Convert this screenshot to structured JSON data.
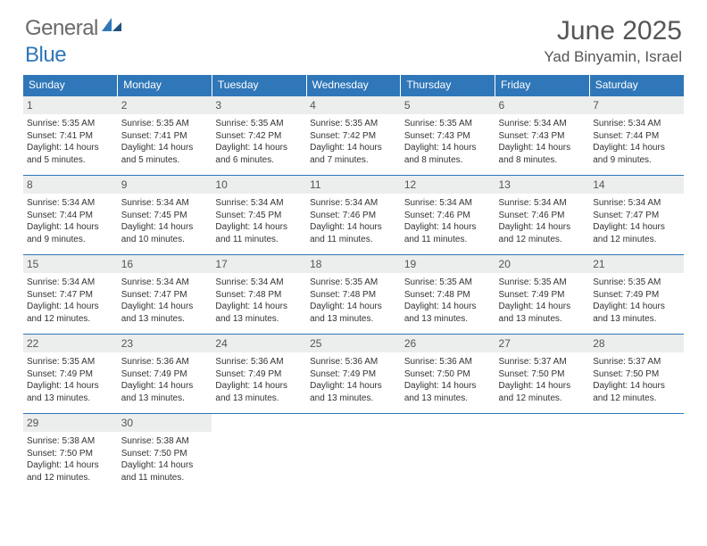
{
  "logo": {
    "word1": "General",
    "word2": "Blue"
  },
  "title": "June 2025",
  "location": "Yad Binyamin, Israel",
  "colors": {
    "header_bg": "#2f77b8",
    "header_text": "#ffffff",
    "daynum_bg": "#eceded",
    "border": "#2f77b8",
    "title_color": "#555555",
    "body_text": "#333333"
  },
  "weekdays": [
    "Sunday",
    "Monday",
    "Tuesday",
    "Wednesday",
    "Thursday",
    "Friday",
    "Saturday"
  ],
  "days": {
    "1": {
      "sunrise": "5:35 AM",
      "sunset": "7:41 PM",
      "daylight": "14 hours and 5 minutes."
    },
    "2": {
      "sunrise": "5:35 AM",
      "sunset": "7:41 PM",
      "daylight": "14 hours and 5 minutes."
    },
    "3": {
      "sunrise": "5:35 AM",
      "sunset": "7:42 PM",
      "daylight": "14 hours and 6 minutes."
    },
    "4": {
      "sunrise": "5:35 AM",
      "sunset": "7:42 PM",
      "daylight": "14 hours and 7 minutes."
    },
    "5": {
      "sunrise": "5:35 AM",
      "sunset": "7:43 PM",
      "daylight": "14 hours and 8 minutes."
    },
    "6": {
      "sunrise": "5:34 AM",
      "sunset": "7:43 PM",
      "daylight": "14 hours and 8 minutes."
    },
    "7": {
      "sunrise": "5:34 AM",
      "sunset": "7:44 PM",
      "daylight": "14 hours and 9 minutes."
    },
    "8": {
      "sunrise": "5:34 AM",
      "sunset": "7:44 PM",
      "daylight": "14 hours and 9 minutes."
    },
    "9": {
      "sunrise": "5:34 AM",
      "sunset": "7:45 PM",
      "daylight": "14 hours and 10 minutes."
    },
    "10": {
      "sunrise": "5:34 AM",
      "sunset": "7:45 PM",
      "daylight": "14 hours and 11 minutes."
    },
    "11": {
      "sunrise": "5:34 AM",
      "sunset": "7:46 PM",
      "daylight": "14 hours and 11 minutes."
    },
    "12": {
      "sunrise": "5:34 AM",
      "sunset": "7:46 PM",
      "daylight": "14 hours and 11 minutes."
    },
    "13": {
      "sunrise": "5:34 AM",
      "sunset": "7:46 PM",
      "daylight": "14 hours and 12 minutes."
    },
    "14": {
      "sunrise": "5:34 AM",
      "sunset": "7:47 PM",
      "daylight": "14 hours and 12 minutes."
    },
    "15": {
      "sunrise": "5:34 AM",
      "sunset": "7:47 PM",
      "daylight": "14 hours and 12 minutes."
    },
    "16": {
      "sunrise": "5:34 AM",
      "sunset": "7:47 PM",
      "daylight": "14 hours and 13 minutes."
    },
    "17": {
      "sunrise": "5:34 AM",
      "sunset": "7:48 PM",
      "daylight": "14 hours and 13 minutes."
    },
    "18": {
      "sunrise": "5:35 AM",
      "sunset": "7:48 PM",
      "daylight": "14 hours and 13 minutes."
    },
    "19": {
      "sunrise": "5:35 AM",
      "sunset": "7:48 PM",
      "daylight": "14 hours and 13 minutes."
    },
    "20": {
      "sunrise": "5:35 AM",
      "sunset": "7:49 PM",
      "daylight": "14 hours and 13 minutes."
    },
    "21": {
      "sunrise": "5:35 AM",
      "sunset": "7:49 PM",
      "daylight": "14 hours and 13 minutes."
    },
    "22": {
      "sunrise": "5:35 AM",
      "sunset": "7:49 PM",
      "daylight": "14 hours and 13 minutes."
    },
    "23": {
      "sunrise": "5:36 AM",
      "sunset": "7:49 PM",
      "daylight": "14 hours and 13 minutes."
    },
    "24": {
      "sunrise": "5:36 AM",
      "sunset": "7:49 PM",
      "daylight": "14 hours and 13 minutes."
    },
    "25": {
      "sunrise": "5:36 AM",
      "sunset": "7:49 PM",
      "daylight": "14 hours and 13 minutes."
    },
    "26": {
      "sunrise": "5:36 AM",
      "sunset": "7:50 PM",
      "daylight": "14 hours and 13 minutes."
    },
    "27": {
      "sunrise": "5:37 AM",
      "sunset": "7:50 PM",
      "daylight": "14 hours and 12 minutes."
    },
    "28": {
      "sunrise": "5:37 AM",
      "sunset": "7:50 PM",
      "daylight": "14 hours and 12 minutes."
    },
    "29": {
      "sunrise": "5:38 AM",
      "sunset": "7:50 PM",
      "daylight": "14 hours and 12 minutes."
    },
    "30": {
      "sunrise": "5:38 AM",
      "sunset": "7:50 PM",
      "daylight": "14 hours and 11 minutes."
    }
  },
  "labels": {
    "sunrise_prefix": "Sunrise: ",
    "sunset_prefix": "Sunset: ",
    "daylight_prefix": "Daylight: "
  },
  "layout": {
    "start_weekday": 0,
    "days_in_month": 30,
    "cols": 7
  }
}
